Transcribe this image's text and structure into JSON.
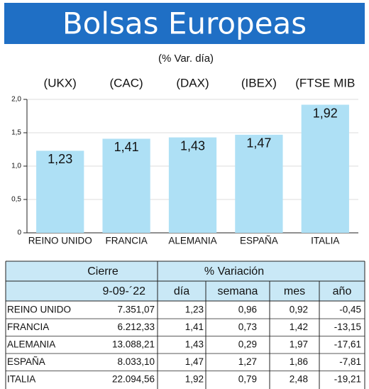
{
  "chart_data": {
    "type": "bar",
    "title": "Bolsas Europeas",
    "subtitle": "(% Var. día)",
    "indices": [
      "(UKX)",
      "(CAC)",
      "(DAX)",
      "(IBEX)",
      "(FTSE MIB"
    ],
    "categories": [
      "REINO UNIDO",
      "FRANCIA",
      "ALEMANIA",
      "ESPAÑA",
      "ITALIA"
    ],
    "values": [
      1.23,
      1.41,
      1.43,
      1.47,
      1.92
    ],
    "value_labels": [
      "1,23",
      "1,41",
      "1,43",
      "1,47",
      "1,92"
    ],
    "color": "#aee0f5",
    "ylim": [
      0,
      2.0
    ],
    "yticks": [
      0,
      {
        "value": 0.5,
        "label": "0,5"
      },
      {
        "value": 1.0,
        "label": "1,0"
      },
      {
        "value": 1.5,
        "label": "1,5"
      },
      {
        "value": 2.0,
        "label": "2,0"
      }
    ],
    "grid": true
  },
  "table": {
    "header": {
      "cierre": "Cierre",
      "variacion": "% Variación"
    },
    "date": "9-09-´22",
    "columns": [
      "día",
      "semana",
      "mes",
      "año"
    ],
    "rows": [
      [
        "REINO UNIDO",
        "7.351,07",
        "1,23",
        "0,96",
        "0,92",
        "-0,45"
      ],
      [
        "FRANCIA",
        "6.212,33",
        "1,41",
        "0,73",
        "1,42",
        "-13,15"
      ],
      [
        "ALEMANIA",
        "13.088,21",
        "1,43",
        "0,29",
        "1,97",
        "-17,61"
      ],
      [
        "ESPAÑA",
        "8.033,10",
        "1,47",
        "1,27",
        "1,86",
        "-7,81"
      ],
      [
        "ITALIA",
        "22.094,56",
        "1,92",
        "0,79",
        "2,48",
        "-19,21"
      ]
    ]
  }
}
